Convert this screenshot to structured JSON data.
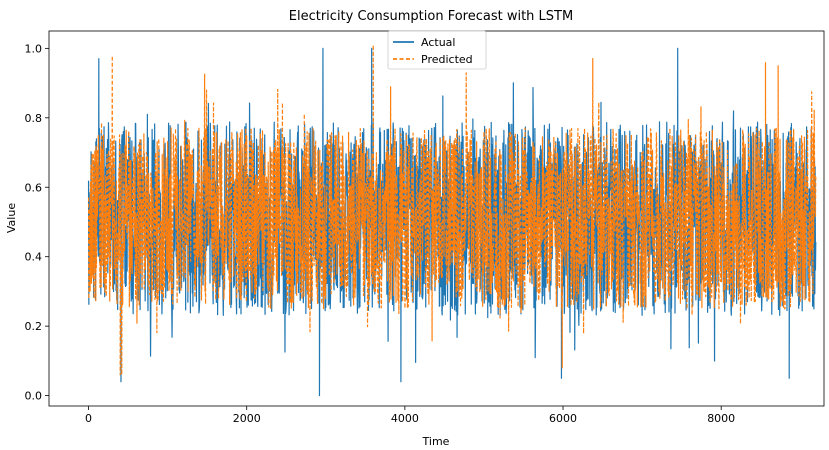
{
  "chart_data": {
    "type": "line",
    "title": "Electricity Consumption Forecast with LSTM",
    "xlabel": "Time",
    "ylabel": "Value",
    "xlim": [
      -500,
      9300
    ],
    "ylim": [
      -0.03,
      1.05
    ],
    "xticks": [
      0,
      2000,
      4000,
      6000,
      8000
    ],
    "xtick_labels": [
      "0",
      "2000",
      "4000",
      "6000",
      "8000"
    ],
    "yticks": [
      0.0,
      0.2,
      0.4,
      0.6,
      0.8,
      1.0
    ],
    "ytick_labels": [
      "0.0",
      "0.2",
      "0.4",
      "0.6",
      "0.8",
      "1.0"
    ],
    "grid": false,
    "legend_position": "top-center",
    "n_points": 9200,
    "x_range": [
      0,
      9200
    ],
    "series": [
      {
        "name": "Actual",
        "color": "#1f77b4",
        "style": "solid",
        "typical_range": [
          0.2,
          0.82
        ],
        "min": 0.0,
        "max": 1.0,
        "peaks": [
          {
            "x": 130,
            "y": 0.97
          },
          {
            "x": 3580,
            "y": 1.0
          },
          {
            "x": 7450,
            "y": 1.0
          }
        ],
        "troughs": [
          {
            "x": 410,
            "y": 0.04
          },
          {
            "x": 2920,
            "y": 0.0
          },
          {
            "x": 3950,
            "y": 0.04
          },
          {
            "x": 5980,
            "y": 0.05
          },
          {
            "x": 8860,
            "y": 0.05
          }
        ]
      },
      {
        "name": "Predicted",
        "color": "#ff7f0e",
        "style": "dashed",
        "typical_range": [
          0.22,
          0.8
        ],
        "min": 0.06,
        "max": 1.01,
        "peaks": [
          {
            "x": 3600,
            "y": 1.01
          },
          {
            "x": 8560,
            "y": 0.96
          },
          {
            "x": 8720,
            "y": 0.95
          }
        ],
        "troughs": [
          {
            "x": 400,
            "y": 0.06
          },
          {
            "x": 5990,
            "y": 0.08
          }
        ]
      }
    ]
  }
}
